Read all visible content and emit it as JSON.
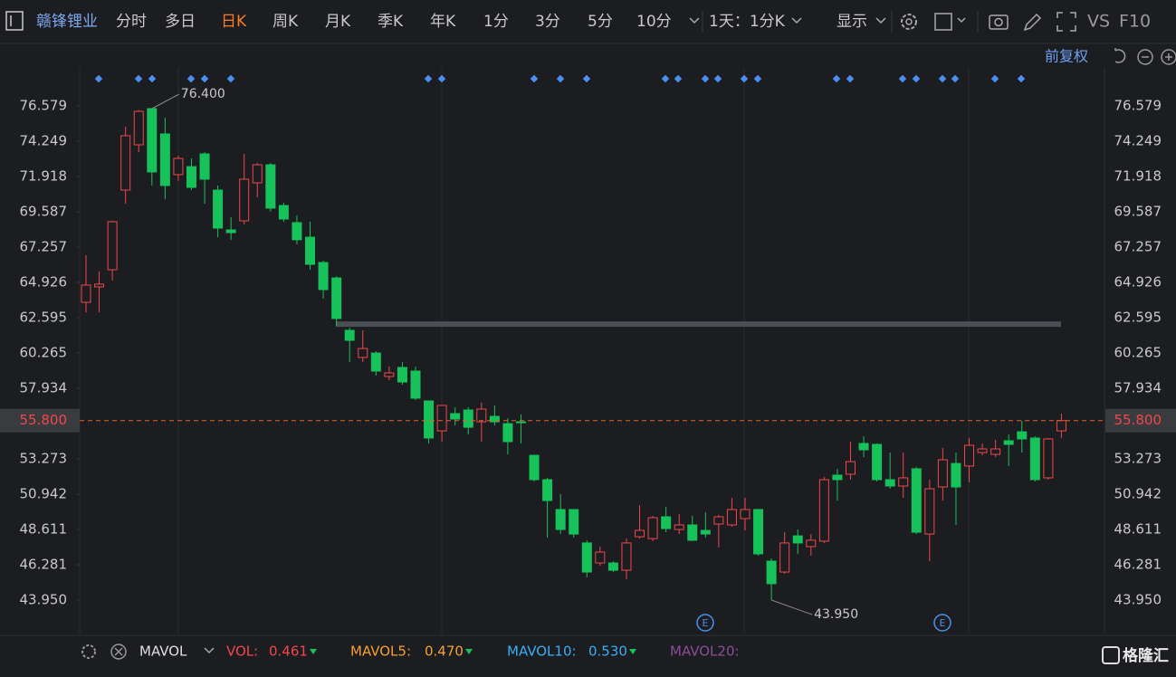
{
  "toolbar": {
    "stock": "赣锋锂业",
    "tabs": [
      "分时",
      "多日",
      "日K",
      "周K",
      "月K",
      "季K",
      "年K",
      "1分",
      "3分",
      "5分",
      "10分"
    ],
    "period": "1天：1分K",
    "display": "显示",
    "vs": "VS",
    "f10": "F10",
    "adjust": "前复权"
  },
  "indicator_bar": {
    "name": "MAVOL",
    "vol_label": "VOL:",
    "vol": "0.461",
    "mavol5_label": "MAVOL5:",
    "mavol5": "0.470",
    "mavol10_label": "MAVOL10:",
    "mavol10": "0.530",
    "mavol20_label": "MAVOL20:",
    "logo": "格隆汇"
  },
  "chart_data": {
    "type": "candlestick",
    "up_color": "#f0474b",
    "down_color": "#17c25a",
    "series": {
      "open": [
        63.61,
        64.63,
        65.76,
        71.02,
        74.01,
        76.4,
        74.73,
        72.04,
        72.57,
        73.41,
        71.02,
        68.39,
        68.99,
        71.5,
        72.69,
        70.0,
        68.87,
        67.91,
        66.24,
        65.22,
        61.76,
        59.97,
        60.26,
        58.71,
        59.31,
        59.07,
        57.1,
        55.12,
        56.26,
        56.5,
        55.72,
        56.08,
        55.6,
        55.72,
        53.51,
        51.9,
        49.93,
        49.93,
        47.72,
        46.4,
        46.4,
        45.92,
        48.13,
        48.01,
        49.45,
        48.61,
        48.91,
        48.55,
        48.97,
        48.91,
        49.33,
        49.93,
        46.52,
        45.8,
        48.19,
        47.48,
        47.84,
        52.2,
        52.26,
        54.29,
        54.23,
        51.9,
        51.48,
        52.62,
        48.31,
        51.42,
        52.97,
        52.8,
        53.69,
        53.57,
        54.47,
        55.06,
        54.65,
        52.02,
        55.12
      ],
      "high": [
        66.72,
        65.64,
        69.0,
        75.2,
        76.3,
        76.4,
        75.8,
        73.29,
        73.11,
        73.53,
        71.32,
        69.23,
        73.41,
        72.81,
        72.81,
        70.18,
        69.35,
        68.93,
        66.36,
        65.34,
        61.94,
        61.76,
        60.38,
        59.37,
        59.67,
        59.37,
        57.1,
        56.8,
        56.68,
        56.68,
        56.98,
        56.8,
        55.96,
        56.2,
        53.51,
        52.02,
        50.94,
        49.93,
        47.9,
        47.48,
        46.52,
        48.01,
        50.22,
        49.51,
        50.1,
        49.63,
        49.51,
        49.75,
        49.57,
        50.7,
        50.7,
        49.93,
        46.7,
        48.43,
        48.61,
        48.31,
        52.08,
        52.62,
        54.41,
        54.77,
        54.29,
        53.69,
        53.69,
        52.74,
        51.9,
        53.99,
        53.69,
        54.65,
        54.29,
        54.53,
        54.89,
        55.78,
        54.77,
        54.65,
        56.26
      ],
      "low": [
        62.95,
        62.95,
        65.05,
        70.12,
        73.53,
        71.32,
        70.42,
        71.62,
        71.02,
        70.12,
        67.91,
        67.74,
        68.75,
        70.54,
        69.59,
        68.93,
        67.44,
        65.76,
        63.85,
        62.06,
        59.67,
        59.67,
        58.77,
        58.47,
        58.17,
        57.16,
        54.29,
        54.41,
        55.48,
        54.89,
        54.41,
        55.48,
        53.57,
        54.29,
        51.78,
        48.07,
        48.31,
        48.07,
        45.45,
        46.22,
        45.8,
        45.33,
        48.01,
        47.84,
        48.43,
        48.31,
        47.84,
        48.07,
        47.42,
        48.79,
        48.55,
        46.88,
        43.95,
        45.68,
        46.99,
        46.88,
        47.72,
        50.52,
        51.9,
        53.39,
        51.78,
        51.3,
        50.7,
        48.31,
        46.52,
        50.52,
        48.91,
        51.72,
        53.51,
        53.39,
        52.8,
        53.69,
        51.78,
        51.9,
        54.65
      ],
      "close": [
        64.75,
        64.81,
        68.93,
        74.61,
        76.22,
        72.22,
        71.32,
        73.11,
        71.2,
        71.74,
        68.51,
        68.21,
        71.74,
        72.69,
        69.83,
        69.11,
        67.74,
        66.12,
        64.45,
        62.54,
        61.1,
        60.56,
        59.07,
        58.95,
        58.35,
        57.28,
        54.65,
        56.8,
        55.9,
        55.36,
        56.56,
        55.72,
        54.41,
        55.66,
        51.9,
        50.52,
        48.61,
        48.31,
        45.8,
        47.12,
        45.92,
        47.72,
        48.55,
        49.39,
        48.67,
        48.91,
        47.9,
        48.31,
        49.45,
        49.93,
        49.93,
        47.0,
        45.03,
        47.72,
        47.72,
        47.9,
        51.9,
        51.9,
        53.09,
        53.87,
        51.9,
        51.48,
        52.02,
        48.43,
        51.3,
        53.21,
        51.42,
        54.17,
        53.93,
        53.93,
        54.23,
        54.59,
        51.9,
        54.59,
        55.8
      ]
    },
    "ylim": [
      41.739,
      79.089
    ],
    "yticks": [
      76.579,
      74.249,
      71.918,
      69.587,
      67.257,
      64.926,
      62.595,
      60.265,
      57.934,
      53.273,
      50.942,
      48.611,
      46.281,
      {
        "value": 43.95,
        "label": "43.950"
      }
    ],
    "last_price": {
      "value": 55.8,
      "label": "55.800"
    },
    "support_line": 62.17,
    "annotations": [
      {
        "value": 76.4,
        "label": "76.400"
      },
      {
        "value": 43.95,
        "label": "43.950"
      }
    ]
  }
}
